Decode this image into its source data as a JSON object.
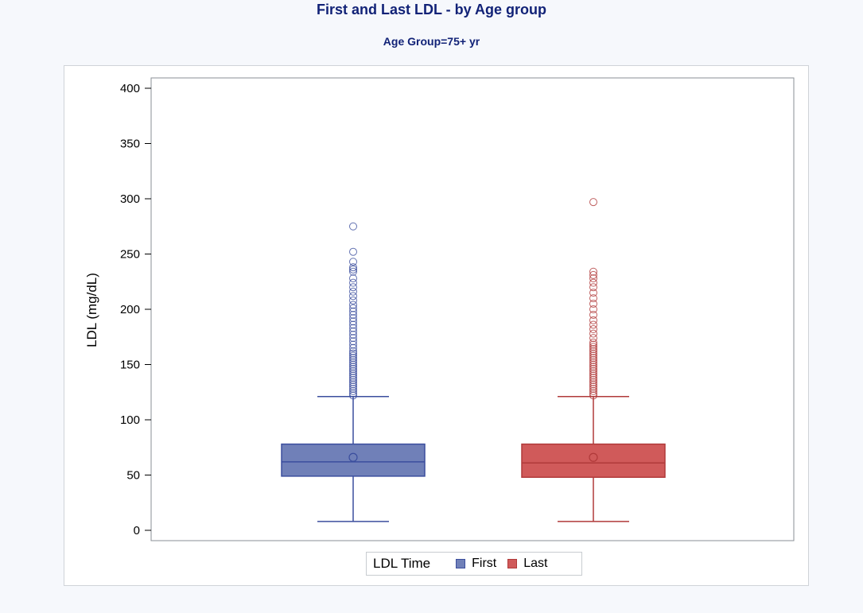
{
  "title": "First and Last LDL - by Age group",
  "subtitle": "Age Group=75+ yr",
  "legend": {
    "title": "LDL Time"
  },
  "colors": {
    "first_fill": "#7080b8",
    "first_line": "#3b4e9e",
    "last_fill": "#d05a5a",
    "last_line": "#b03a3a"
  },
  "chart_data": {
    "type": "box",
    "ylabel": "LDL (mg/dL)",
    "xlabel": "",
    "ylim": [
      0,
      400
    ],
    "yticks": [
      "0",
      "50",
      "100",
      "150",
      "200",
      "250",
      "300",
      "350",
      "400"
    ],
    "grid": false,
    "legend_position": "bottom",
    "series": [
      {
        "name": "First",
        "min": 8,
        "q1": 49,
        "median": 62,
        "mean": 66,
        "q3": 78,
        "whisker_high": 121,
        "outliers": [
          122,
          124,
          126,
          128,
          130,
          132,
          134,
          136,
          138,
          140,
          142,
          144,
          146,
          148,
          150,
          152,
          154,
          156,
          158,
          160,
          162,
          165,
          168,
          171,
          174,
          177,
          180,
          183,
          186,
          189,
          192,
          195,
          198,
          201,
          204,
          208,
          212,
          216,
          220,
          224,
          228,
          234,
          236,
          238,
          243,
          252,
          275
        ]
      },
      {
        "name": "Last",
        "min": 8,
        "q1": 48,
        "median": 61,
        "mean": 66,
        "q3": 78,
        "whisker_high": 121,
        "outliers": [
          122,
          124,
          126,
          128,
          130,
          132,
          134,
          136,
          138,
          140,
          142,
          144,
          146,
          148,
          150,
          152,
          154,
          156,
          158,
          160,
          162,
          164,
          166,
          168,
          170,
          174,
          178,
          182,
          186,
          190,
          195,
          200,
          205,
          210,
          215,
          220,
          224,
          228,
          231,
          234,
          297
        ]
      }
    ]
  }
}
